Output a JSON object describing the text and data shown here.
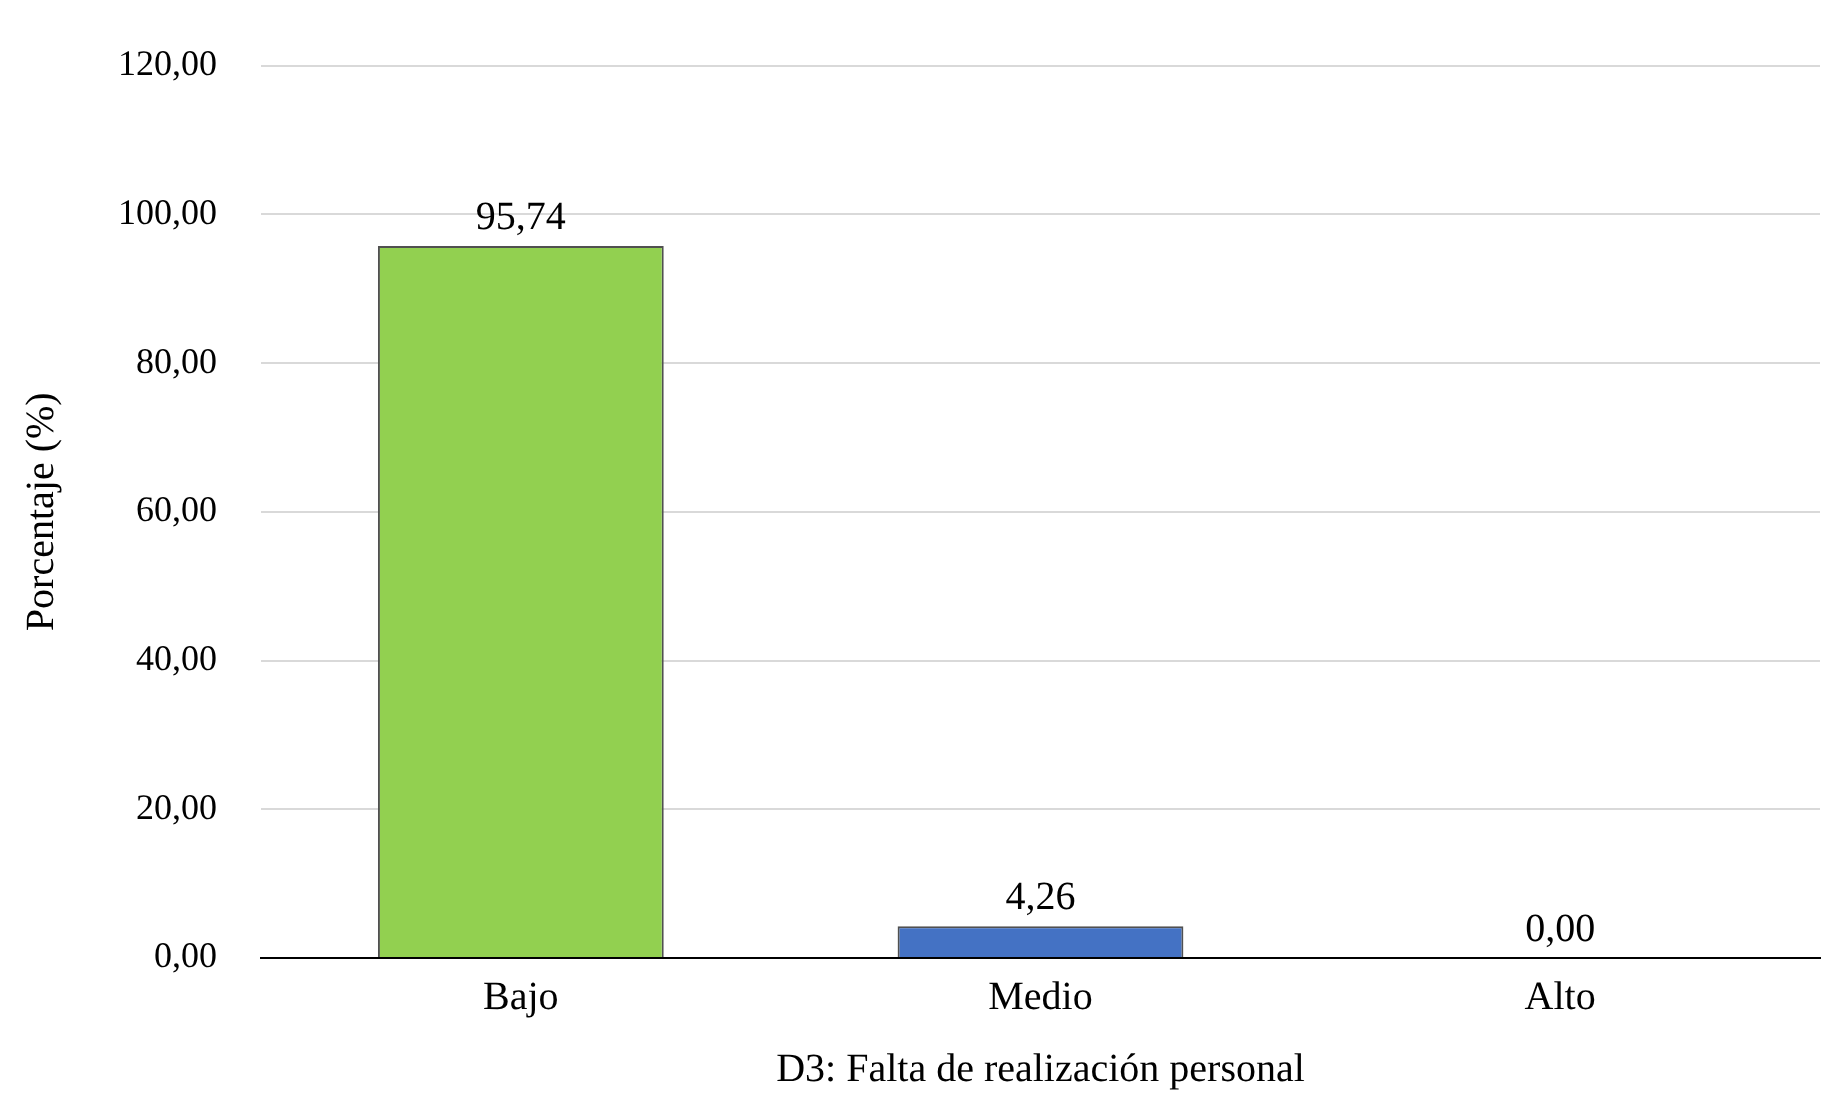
{
  "chart_data": {
    "type": "bar",
    "xlabel": "D3: Falta de realización personal",
    "ylabel": "Porcentaje (%)",
    "categories": [
      "Bajo",
      "Medio",
      "Alto"
    ],
    "values": [
      95.74,
      4.26,
      0
    ],
    "colors": [
      "#92d050",
      "#4472c4",
      "#a5a5a5"
    ],
    "value_labels": [
      "95,74",
      "4,26",
      "0,00"
    ],
    "ylim": [
      0,
      120
    ],
    "yticks": [
      {
        "value": 0,
        "label": "0,00"
      },
      {
        "value": 20,
        "label": "20,00"
      },
      {
        "value": 40,
        "label": "40,00"
      },
      {
        "value": 60,
        "label": "60,00"
      },
      {
        "value": 80,
        "label": "80,00"
      },
      {
        "value": 100,
        "label": "100,00"
      },
      {
        "value": 120,
        "label": "120,00"
      }
    ],
    "grid": "y",
    "legend": false
  }
}
